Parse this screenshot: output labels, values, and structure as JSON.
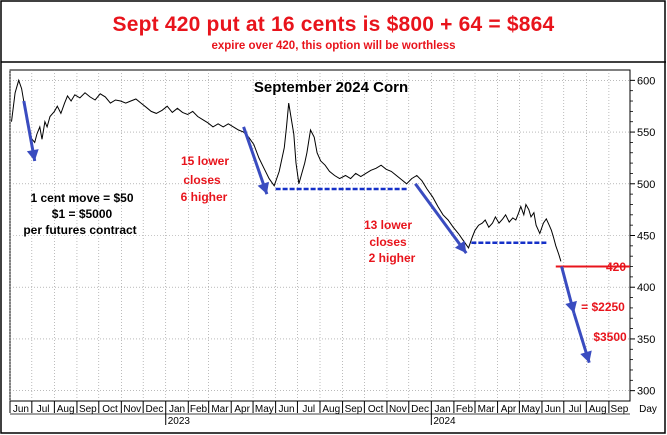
{
  "header": {
    "headline": "Sept 420 put at 16 cents is $800 + 64 = $864",
    "subline": "expire over 420, this option will be worthless"
  },
  "chart_data": {
    "type": "line",
    "title": "September 2024 Corn",
    "xlabel": "Day",
    "ylabel": "",
    "ylim": [
      290,
      610
    ],
    "yticks": [
      300,
      350,
      400,
      450,
      500,
      550,
      600
    ],
    "xlim": [
      "2022-06-01",
      "2024-09-30"
    ],
    "grid": true,
    "month_ticks": [
      {
        "label": "Jun",
        "date": "2022-06-01"
      },
      {
        "label": "Jul",
        "date": "2022-07-01"
      },
      {
        "label": "Aug",
        "date": "2022-08-01"
      },
      {
        "label": "Sep",
        "date": "2022-09-01"
      },
      {
        "label": "Oct",
        "date": "2022-10-01"
      },
      {
        "label": "Nov",
        "date": "2022-11-01"
      },
      {
        "label": "Dec",
        "date": "2022-12-01"
      },
      {
        "label": "Jan",
        "date": "2023-01-01"
      },
      {
        "label": "Feb",
        "date": "2023-02-01"
      },
      {
        "label": "Mar",
        "date": "2023-03-01"
      },
      {
        "label": "Apr",
        "date": "2023-04-01"
      },
      {
        "label": "May",
        "date": "2023-05-01"
      },
      {
        "label": "Jun",
        "date": "2023-06-01"
      },
      {
        "label": "Jul",
        "date": "2023-07-01"
      },
      {
        "label": "Aug",
        "date": "2023-08-01"
      },
      {
        "label": "Sep",
        "date": "2023-09-01"
      },
      {
        "label": "Oct",
        "date": "2023-10-01"
      },
      {
        "label": "Nov",
        "date": "2023-11-01"
      },
      {
        "label": "Dec",
        "date": "2023-12-01"
      },
      {
        "label": "Jan",
        "date": "2024-01-01"
      },
      {
        "label": "Feb",
        "date": "2024-02-01"
      },
      {
        "label": "Mar",
        "date": "2024-03-01"
      },
      {
        "label": "Apr",
        "date": "2024-04-01"
      },
      {
        "label": "May",
        "date": "2024-05-01"
      },
      {
        "label": "Jun",
        "date": "2024-06-01"
      },
      {
        "label": "Jul",
        "date": "2024-07-01"
      },
      {
        "label": "Aug",
        "date": "2024-08-01"
      },
      {
        "label": "Sep",
        "date": "2024-09-01"
      }
    ],
    "year_labels": [
      {
        "label": "2023",
        "date": "2023-01-01"
      },
      {
        "label": "2024",
        "date": "2024-01-01"
      }
    ],
    "series": [
      {
        "color": "#000000",
        "points": [
          [
            "2022-06-03",
            560
          ],
          [
            "2022-06-08",
            588
          ],
          [
            "2022-06-13",
            600
          ],
          [
            "2022-06-17",
            592
          ],
          [
            "2022-06-21",
            575
          ],
          [
            "2022-06-24",
            560
          ],
          [
            "2022-06-29",
            545
          ],
          [
            "2022-07-05",
            540
          ],
          [
            "2022-07-08",
            548
          ],
          [
            "2022-07-12",
            555
          ],
          [
            "2022-07-15",
            543
          ],
          [
            "2022-07-19",
            560
          ],
          [
            "2022-07-22",
            555
          ],
          [
            "2022-07-26",
            565
          ],
          [
            "2022-08-01",
            570
          ],
          [
            "2022-08-05",
            575
          ],
          [
            "2022-08-10",
            568
          ],
          [
            "2022-08-15",
            578
          ],
          [
            "2022-08-19",
            585
          ],
          [
            "2022-08-24",
            580
          ],
          [
            "2022-08-29",
            586
          ],
          [
            "2022-09-05",
            583
          ],
          [
            "2022-09-12",
            588
          ],
          [
            "2022-09-19",
            584
          ],
          [
            "2022-09-26",
            581
          ],
          [
            "2022-10-03",
            587
          ],
          [
            "2022-10-10",
            584
          ],
          [
            "2022-10-17",
            578
          ],
          [
            "2022-10-24",
            581
          ],
          [
            "2022-10-31",
            580
          ],
          [
            "2022-11-07",
            578
          ],
          [
            "2022-11-14",
            580
          ],
          [
            "2022-11-21",
            582
          ],
          [
            "2022-11-28",
            578
          ],
          [
            "2022-12-05",
            574
          ],
          [
            "2022-12-12",
            570
          ],
          [
            "2022-12-19",
            568
          ],
          [
            "2022-12-27",
            571
          ],
          [
            "2023-01-03",
            575
          ],
          [
            "2023-01-10",
            569
          ],
          [
            "2023-01-17",
            573
          ],
          [
            "2023-01-24",
            569
          ],
          [
            "2023-01-31",
            567
          ],
          [
            "2023-02-07",
            570
          ],
          [
            "2023-02-14",
            565
          ],
          [
            "2023-02-21",
            562
          ],
          [
            "2023-02-28",
            559
          ],
          [
            "2023-03-07",
            555
          ],
          [
            "2023-03-14",
            558
          ],
          [
            "2023-03-21",
            555
          ],
          [
            "2023-03-28",
            558
          ],
          [
            "2023-04-04",
            555
          ],
          [
            "2023-04-11",
            552
          ],
          [
            "2023-04-18",
            550
          ],
          [
            "2023-04-25",
            545
          ],
          [
            "2023-05-02",
            538
          ],
          [
            "2023-05-09",
            525
          ],
          [
            "2023-05-16",
            515
          ],
          [
            "2023-05-23",
            505
          ],
          [
            "2023-05-30",
            498
          ],
          [
            "2023-06-06",
            512
          ],
          [
            "2023-06-13",
            535
          ],
          [
            "2023-06-16",
            555
          ],
          [
            "2023-06-19",
            578
          ],
          [
            "2023-06-22",
            565
          ],
          [
            "2023-06-26",
            548
          ],
          [
            "2023-06-29",
            520
          ],
          [
            "2023-07-03",
            500
          ],
          [
            "2023-07-07",
            510
          ],
          [
            "2023-07-11",
            520
          ],
          [
            "2023-07-14",
            530
          ],
          [
            "2023-07-19",
            552
          ],
          [
            "2023-07-24",
            545
          ],
          [
            "2023-07-28",
            530
          ],
          [
            "2023-08-02",
            522
          ],
          [
            "2023-08-08",
            518
          ],
          [
            "2023-08-14",
            512
          ],
          [
            "2023-08-21",
            508
          ],
          [
            "2023-08-28",
            505
          ],
          [
            "2023-09-05",
            508
          ],
          [
            "2023-09-12",
            505
          ],
          [
            "2023-09-19",
            510
          ],
          [
            "2023-09-26",
            507
          ],
          [
            "2023-10-03",
            510
          ],
          [
            "2023-10-10",
            513
          ],
          [
            "2023-10-17",
            515
          ],
          [
            "2023-10-24",
            518
          ],
          [
            "2023-10-31",
            514
          ],
          [
            "2023-11-07",
            512
          ],
          [
            "2023-11-14",
            508
          ],
          [
            "2023-11-21",
            504
          ],
          [
            "2023-11-28",
            500
          ],
          [
            "2023-12-05",
            505
          ],
          [
            "2023-12-12",
            508
          ],
          [
            "2023-12-19",
            503
          ],
          [
            "2023-12-26",
            495
          ],
          [
            "2024-01-03",
            487
          ],
          [
            "2024-01-10",
            478
          ],
          [
            "2024-01-17",
            470
          ],
          [
            "2024-01-24",
            465
          ],
          [
            "2024-01-31",
            458
          ],
          [
            "2024-02-07",
            452
          ],
          [
            "2024-02-14",
            445
          ],
          [
            "2024-02-21",
            438
          ],
          [
            "2024-02-26",
            448
          ],
          [
            "2024-03-01",
            455
          ],
          [
            "2024-03-06",
            460
          ],
          [
            "2024-03-11",
            462
          ],
          [
            "2024-03-15",
            465
          ],
          [
            "2024-03-20",
            458
          ],
          [
            "2024-03-25",
            462
          ],
          [
            "2024-03-29",
            468
          ],
          [
            "2024-04-03",
            462
          ],
          [
            "2024-04-08",
            466
          ],
          [
            "2024-04-12",
            470
          ],
          [
            "2024-04-17",
            463
          ],
          [
            "2024-04-22",
            467
          ],
          [
            "2024-04-26",
            465
          ],
          [
            "2024-04-30",
            472
          ],
          [
            "2024-05-03",
            478
          ],
          [
            "2024-05-07",
            470
          ],
          [
            "2024-05-10",
            480
          ],
          [
            "2024-05-14",
            475
          ],
          [
            "2024-05-17",
            468
          ],
          [
            "2024-05-21",
            472
          ],
          [
            "2024-05-24",
            460
          ],
          [
            "2024-05-29",
            452
          ],
          [
            "2024-06-03",
            462
          ],
          [
            "2024-06-07",
            466
          ],
          [
            "2024-06-11",
            460
          ],
          [
            "2024-06-14",
            455
          ],
          [
            "2024-06-17",
            448
          ],
          [
            "2024-06-20",
            440
          ],
          [
            "2024-06-24",
            432
          ],
          [
            "2024-06-27",
            425
          ]
        ]
      }
    ],
    "annotations": [
      {
        "id": "note_1",
        "text": "1 cent move = $50",
        "color": "#000000"
      },
      {
        "id": "note_2",
        "text": "$1 = $5000",
        "color": "#000000"
      },
      {
        "id": "note_3",
        "text": "per futures contract",
        "color": "#000000"
      },
      {
        "id": "note_4",
        "text": "15 lower",
        "color": "#e8141c"
      },
      {
        "id": "note_5",
        "text": "closes",
        "color": "#e8141c"
      },
      {
        "id": "note_6",
        "text": "6 higher",
        "color": "#e8141c"
      },
      {
        "id": "note_7",
        "text": "13 lower",
        "color": "#e8141c"
      },
      {
        "id": "note_8",
        "text": "closes",
        "color": "#e8141c"
      },
      {
        "id": "note_9",
        "text": "2 higher",
        "color": "#e8141c"
      },
      {
        "id": "note_10",
        "text": "420",
        "color": "#e8141c"
      },
      {
        "id": "note_11",
        "text": "= $2250",
        "color": "#e8141c"
      },
      {
        "id": "note_12",
        "text": "$3500",
        "color": "#e8141c"
      }
    ],
    "support_lines": [
      {
        "y": 495,
        "from": "2023-06-01",
        "to": "2023-11-30",
        "color": "#1530c8",
        "style": "dashed"
      },
      {
        "y": 443,
        "from": "2024-02-25",
        "to": "2024-06-08",
        "color": "#1530c8",
        "style": "dashed"
      }
    ],
    "strike_line": {
      "y": 420,
      "from": "2024-06-20",
      "to": "2024-09-30",
      "color": "#e8141c"
    },
    "arrows": [
      {
        "from": [
          "2022-06-20",
          580
        ],
        "to": [
          "2022-07-05",
          522
        ],
        "color": "#3a4cc0"
      },
      {
        "from": [
          "2023-04-18",
          555
        ],
        "to": [
          "2023-05-20",
          490
        ],
        "color": "#3a4cc0"
      },
      {
        "from": [
          "2023-12-10",
          500
        ],
        "to": [
          "2024-02-18",
          433
        ],
        "color": "#3a4cc0"
      },
      {
        "from": [
          "2024-06-28",
          420
        ],
        "to": [
          "2024-07-15",
          375
        ],
        "color": "#3a4cc0"
      },
      {
        "from": [
          "2024-07-15",
          375
        ],
        "to": [
          "2024-08-05",
          327
        ],
        "color": "#3a4cc0"
      }
    ],
    "colors": {
      "accent": "#e8141c",
      "arrow": "#3a4cc0",
      "support": "#1530c8",
      "grid": "#909090"
    }
  }
}
